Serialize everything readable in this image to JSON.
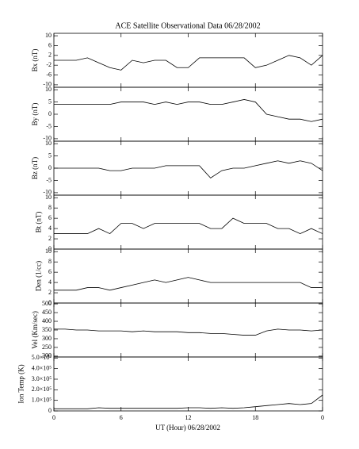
{
  "chart_data": [
    {
      "type": "line",
      "title": "ACE Satellite Observational Data   06/28/2002",
      "ylabel": "Bx (nT)",
      "x": [
        0,
        1,
        2,
        3,
        4,
        5,
        6,
        7,
        8,
        9,
        10,
        11,
        12,
        13,
        14,
        15,
        16,
        17,
        18,
        19,
        20,
        21,
        22,
        23,
        24
      ],
      "xlim": [
        0,
        24
      ],
      "xticks": [
        0,
        6,
        12,
        18,
        {
          "value": 24,
          "label": "0"
        }
      ],
      "series": [
        {
          "name": "Bx",
          "color": "#000000",
          "values": [
            0,
            0,
            0,
            1,
            -1,
            -3,
            -4,
            0,
            -1,
            0,
            0,
            -3,
            -3,
            1,
            1,
            1,
            1,
            1,
            -3,
            -2,
            0,
            2,
            1,
            -2,
            2
          ]
        }
      ],
      "ylim": [
        -11,
        11
      ],
      "yticks": [
        -10,
        -6,
        -2,
        2,
        6,
        10
      ]
    },
    {
      "type": "line",
      "ylabel": "By (nT)",
      "x": [
        0,
        1,
        2,
        3,
        4,
        5,
        6,
        7,
        8,
        9,
        10,
        11,
        12,
        13,
        14,
        15,
        16,
        17,
        18,
        19,
        20,
        21,
        22,
        23,
        24
      ],
      "xlim": [
        0,
        24
      ],
      "xticks": [
        0,
        6,
        12,
        18,
        {
          "value": 24,
          "label": "0"
        }
      ],
      "series": [
        {
          "name": "By",
          "color": "#000000",
          "values": [
            4,
            4,
            4,
            4,
            4,
            4,
            5,
            5,
            5,
            4,
            5,
            4,
            5,
            5,
            4,
            4,
            5,
            6,
            5,
            0,
            -1,
            -2,
            -2,
            -3,
            -2
          ]
        }
      ],
      "ylim": [
        -11,
        11
      ],
      "yticks": [
        -10,
        -5,
        0,
        5,
        10
      ]
    },
    {
      "type": "line",
      "ylabel": "Bz (nT)",
      "x": [
        0,
        1,
        2,
        3,
        4,
        5,
        6,
        7,
        8,
        9,
        10,
        11,
        12,
        13,
        14,
        15,
        16,
        17,
        18,
        19,
        20,
        21,
        22,
        23,
        24
      ],
      "xlim": [
        0,
        24
      ],
      "xticks": [
        0,
        6,
        12,
        18,
        {
          "value": 24,
          "label": "0"
        }
      ],
      "series": [
        {
          "name": "Bz",
          "color": "#000000",
          "values": [
            0,
            0,
            0,
            0,
            0,
            -1,
            -1,
            0,
            0,
            0,
            1,
            1,
            1,
            1,
            -4,
            -1,
            0,
            0,
            1,
            2,
            3,
            2,
            3,
            2,
            -1
          ]
        }
      ],
      "ylim": [
        -11,
        11
      ],
      "yticks": [
        -10,
        -5,
        0,
        5,
        10
      ]
    },
    {
      "type": "line",
      "ylabel": "Bt (nT)",
      "x": [
        0,
        1,
        2,
        3,
        4,
        5,
        6,
        7,
        8,
        9,
        10,
        11,
        12,
        13,
        14,
        15,
        16,
        17,
        18,
        19,
        20,
        21,
        22,
        23,
        24
      ],
      "xlim": [
        0,
        24
      ],
      "xticks": [
        0,
        6,
        12,
        18,
        {
          "value": 24,
          "label": "0"
        }
      ],
      "series": [
        {
          "name": "Bt",
          "color": "#000000",
          "values": [
            3,
            3,
            3,
            3,
            4,
            3,
            5,
            5,
            4,
            5,
            5,
            5,
            5,
            5,
            4,
            4,
            6,
            5,
            5,
            5,
            4,
            4,
            3,
            4,
            3
          ]
        }
      ],
      "ylim": [
        0,
        10.5
      ],
      "yticks": [
        0,
        2,
        4,
        6,
        8,
        10
      ]
    },
    {
      "type": "line",
      "ylabel": "Den (1/cc)",
      "x": [
        0,
        1,
        2,
        3,
        4,
        5,
        6,
        7,
        8,
        9,
        10,
        11,
        12,
        13,
        14,
        15,
        16,
        17,
        18,
        19,
        20,
        21,
        22,
        23,
        24
      ],
      "xlim": [
        0,
        24
      ],
      "xticks": [
        0,
        6,
        12,
        18,
        {
          "value": 24,
          "label": "0"
        }
      ],
      "series": [
        {
          "name": "Den",
          "color": "#000000",
          "values": [
            2.5,
            2.5,
            2.5,
            3,
            3,
            2.5,
            3,
            3.5,
            4,
            4.5,
            4,
            4.5,
            5,
            4.5,
            4,
            4,
            4,
            4,
            4,
            4,
            4,
            4,
            4,
            3,
            3
          ]
        }
      ],
      "ylim": [
        0,
        10.5
      ],
      "yticks": [
        0,
        2,
        4,
        6,
        8,
        10
      ]
    },
    {
      "type": "line",
      "ylabel": "Vel (Km/sec)",
      "x": [
        0,
        1,
        2,
        3,
        4,
        5,
        6,
        7,
        8,
        9,
        10,
        11,
        12,
        13,
        14,
        15,
        16,
        17,
        18,
        19,
        20,
        21,
        22,
        23,
        24
      ],
      "xlim": [
        0,
        24
      ],
      "xticks": [
        0,
        6,
        12,
        18,
        {
          "value": 24,
          "label": "0"
        }
      ],
      "series": [
        {
          "name": "Vel",
          "color": "#000000",
          "values": [
            355,
            355,
            350,
            350,
            345,
            345,
            345,
            340,
            345,
            340,
            340,
            340,
            335,
            335,
            330,
            330,
            325,
            320,
            320,
            345,
            355,
            350,
            350,
            345,
            350
          ]
        }
      ],
      "ylim": [
        195,
        505
      ],
      "yticks": [
        200,
        250,
        300,
        350,
        400,
        450,
        500
      ]
    },
    {
      "type": "line",
      "ylabel": "Ion Temp (K)",
      "xlabel": "UT (Hour)   06/28/2002",
      "x": [
        0,
        1,
        2,
        3,
        4,
        5,
        6,
        7,
        8,
        9,
        10,
        11,
        12,
        13,
        14,
        15,
        16,
        17,
        18,
        19,
        20,
        21,
        22,
        23,
        24
      ],
      "xlim": [
        0,
        24
      ],
      "xticks": [
        0,
        6,
        12,
        18,
        {
          "value": 24,
          "label": "0"
        }
      ],
      "series": [
        {
          "name": "Ion Temp",
          "color": "#000000",
          "values": [
            20000,
            20000,
            20000,
            20000,
            30000,
            25000,
            25000,
            25000,
            25000,
            25000,
            25000,
            25000,
            30000,
            30000,
            25000,
            30000,
            25000,
            30000,
            40000,
            50000,
            60000,
            70000,
            60000,
            70000,
            150000
          ]
        }
      ],
      "ylim": [
        0,
        510000
      ],
      "yticks": [
        0,
        {
          "value": 100000,
          "label": "1.0×10⁵"
        },
        {
          "value": 200000,
          "label": "2.0×10⁵"
        },
        {
          "value": 300000,
          "label": "3.0×10⁵"
        },
        {
          "value": 400000,
          "label": "4.0×10⁵"
        },
        {
          "value": 500000,
          "label": "5.0×10⁵"
        }
      ]
    }
  ]
}
